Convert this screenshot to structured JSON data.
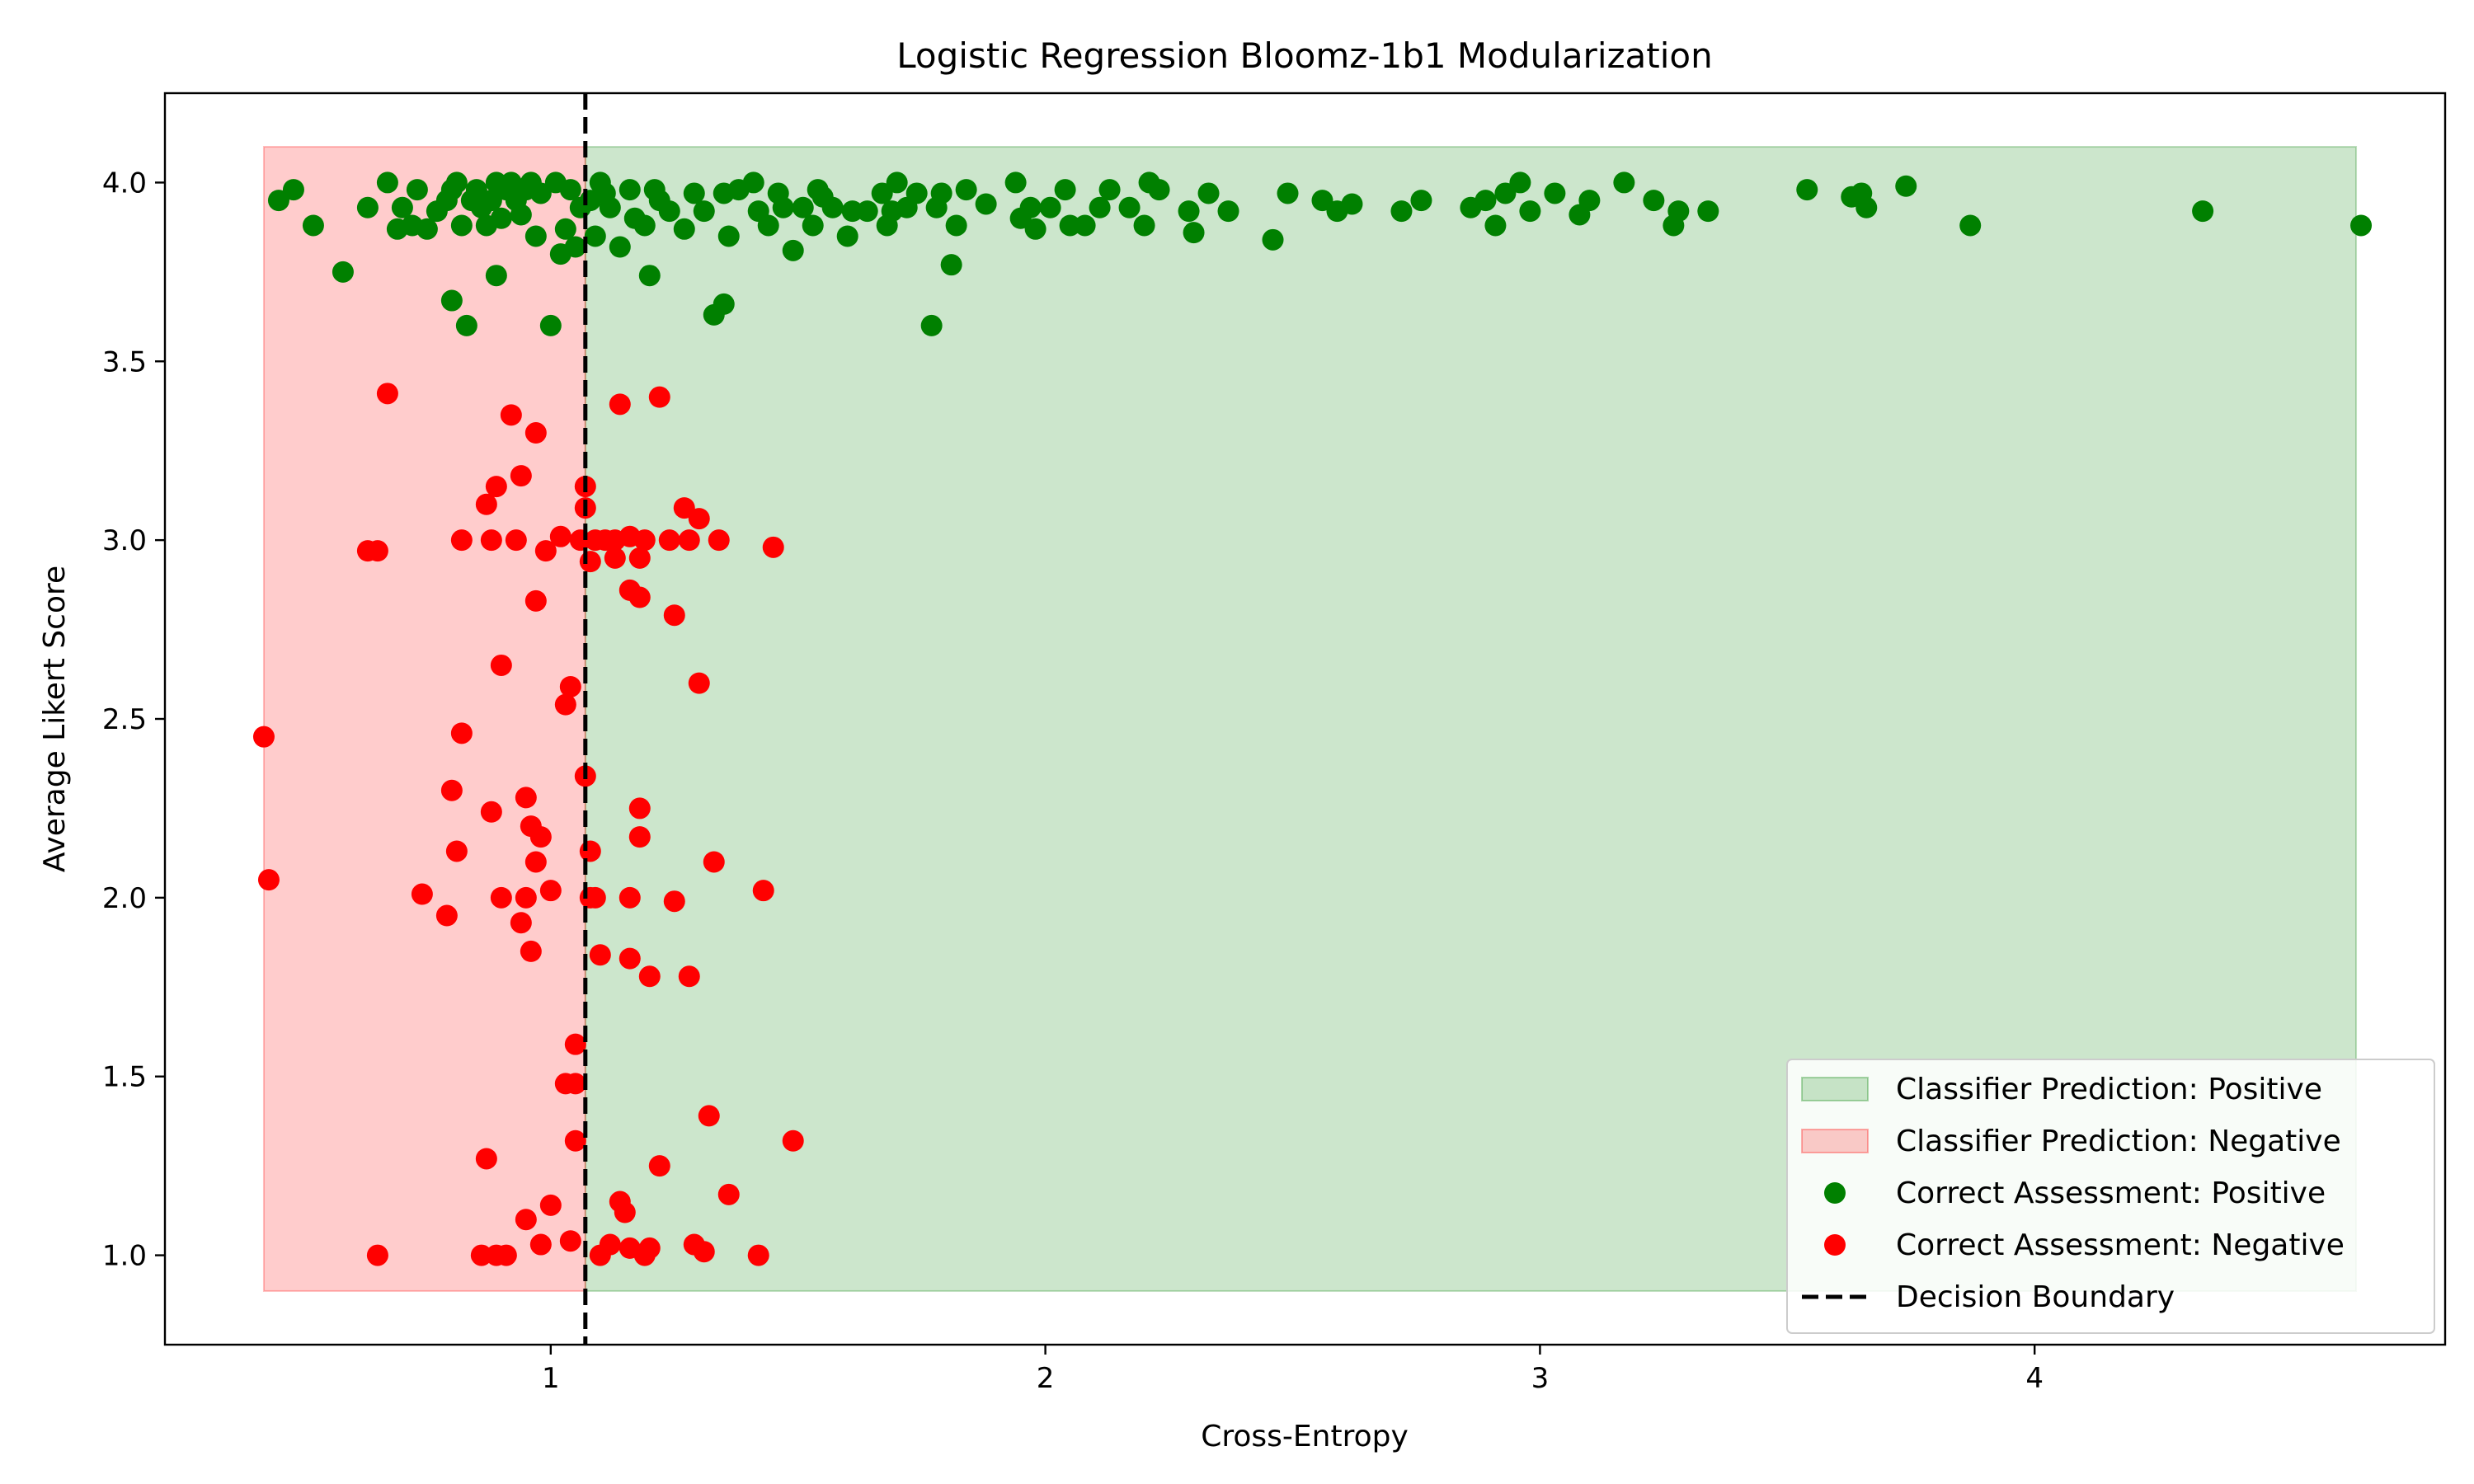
{
  "chart_data": {
    "type": "scatter",
    "title": "Logistic Regression Bloomz-1b1 Modularization",
    "xlabel": "Cross-Entropy",
    "ylabel": "Average Likert Score",
    "xlim": [
      0.22,
      4.83
    ],
    "ylim": [
      0.75,
      4.25
    ],
    "xticks": [
      1,
      2,
      3,
      4
    ],
    "yticks": [
      1.0,
      1.5,
      2.0,
      2.5,
      3.0,
      3.5,
      4.0
    ],
    "grid": false,
    "legend_position": "lower right",
    "decision_boundary": 1.07,
    "regions": [
      {
        "name": "Classifier Prediction: Positive",
        "color": "#008000",
        "x": [
          1.07,
          4.65
        ],
        "y": [
          0.9,
          4.1
        ]
      },
      {
        "name": "Classifier Prediction: Negative",
        "color": "#ff0000",
        "x": [
          0.42,
          1.07
        ],
        "y": [
          0.9,
          4.1
        ]
      }
    ],
    "series": [
      {
        "name": "Correct Assessment: Positive",
        "color": "#008000",
        "points": [
          [
            0.45,
            3.95
          ],
          [
            0.48,
            3.98
          ],
          [
            0.52,
            3.88
          ],
          [
            0.58,
            3.75
          ],
          [
            0.63,
            3.93
          ],
          [
            0.67,
            4.0
          ],
          [
            0.69,
            3.87
          ],
          [
            0.7,
            3.93
          ],
          [
            0.72,
            3.88
          ],
          [
            0.73,
            3.98
          ],
          [
            0.75,
            3.87
          ],
          [
            0.77,
            3.92
          ],
          [
            0.79,
            3.95
          ],
          [
            0.8,
            3.98
          ],
          [
            0.8,
            3.67
          ],
          [
            0.81,
            4.0
          ],
          [
            0.82,
            3.88
          ],
          [
            0.83,
            3.6
          ],
          [
            0.84,
            3.95
          ],
          [
            0.85,
            3.98
          ],
          [
            0.86,
            3.93
          ],
          [
            0.87,
            3.88
          ],
          [
            0.88,
            3.95
          ],
          [
            0.89,
            4.0
          ],
          [
            0.89,
            3.74
          ],
          [
            0.9,
            3.9
          ],
          [
            0.91,
            3.98
          ],
          [
            0.92,
            4.0
          ],
          [
            0.93,
            3.95
          ],
          [
            0.94,
            3.91
          ],
          [
            0.95,
            3.98
          ],
          [
            0.96,
            4.0
          ],
          [
            0.97,
            3.85
          ],
          [
            0.98,
            3.97
          ],
          [
            1.0,
            3.6
          ],
          [
            1.01,
            4.0
          ],
          [
            1.02,
            3.8
          ],
          [
            1.03,
            3.87
          ],
          [
            1.04,
            3.98
          ],
          [
            1.05,
            3.82
          ],
          [
            1.06,
            3.93
          ],
          [
            1.08,
            3.95
          ],
          [
            1.09,
            3.85
          ],
          [
            1.1,
            4.0
          ],
          [
            1.11,
            3.97
          ],
          [
            1.12,
            3.93
          ],
          [
            1.14,
            3.82
          ],
          [
            1.16,
            3.98
          ],
          [
            1.17,
            3.9
          ],
          [
            1.19,
            3.88
          ],
          [
            1.2,
            3.74
          ],
          [
            1.21,
            3.98
          ],
          [
            1.22,
            3.95
          ],
          [
            1.24,
            3.92
          ],
          [
            1.27,
            3.87
          ],
          [
            1.29,
            3.97
          ],
          [
            1.31,
            3.92
          ],
          [
            1.33,
            3.63
          ],
          [
            1.35,
            3.66
          ],
          [
            1.35,
            3.97
          ],
          [
            1.36,
            3.85
          ],
          [
            1.38,
            3.98
          ],
          [
            1.41,
            4.0
          ],
          [
            1.42,
            3.92
          ],
          [
            1.44,
            3.88
          ],
          [
            1.46,
            3.97
          ],
          [
            1.47,
            3.93
          ],
          [
            1.49,
            3.81
          ],
          [
            1.51,
            3.93
          ],
          [
            1.53,
            3.88
          ],
          [
            1.54,
            3.98
          ],
          [
            1.55,
            3.96
          ],
          [
            1.57,
            3.93
          ],
          [
            1.6,
            3.85
          ],
          [
            1.61,
            3.92
          ],
          [
            1.64,
            3.92
          ],
          [
            1.67,
            3.97
          ],
          [
            1.68,
            3.88
          ],
          [
            1.69,
            3.92
          ],
          [
            1.7,
            4.0
          ],
          [
            1.72,
            3.93
          ],
          [
            1.74,
            3.97
          ],
          [
            1.77,
            3.6
          ],
          [
            1.78,
            3.93
          ],
          [
            1.79,
            3.97
          ],
          [
            1.81,
            3.77
          ],
          [
            1.82,
            3.88
          ],
          [
            1.84,
            3.98
          ],
          [
            1.88,
            3.94
          ],
          [
            1.94,
            4.0
          ],
          [
            1.95,
            3.9
          ],
          [
            1.97,
            3.93
          ],
          [
            1.98,
            3.87
          ],
          [
            2.01,
            3.93
          ],
          [
            2.04,
            3.98
          ],
          [
            2.05,
            3.88
          ],
          [
            2.08,
            3.88
          ],
          [
            2.11,
            3.93
          ],
          [
            2.13,
            3.98
          ],
          [
            2.17,
            3.93
          ],
          [
            2.2,
            3.88
          ],
          [
            2.21,
            4.0
          ],
          [
            2.23,
            3.98
          ],
          [
            2.29,
            3.92
          ],
          [
            2.3,
            3.86
          ],
          [
            2.33,
            3.97
          ],
          [
            2.37,
            3.92
          ],
          [
            2.46,
            3.84
          ],
          [
            2.49,
            3.97
          ],
          [
            2.56,
            3.95
          ],
          [
            2.59,
            3.92
          ],
          [
            2.62,
            3.94
          ],
          [
            2.72,
            3.92
          ],
          [
            2.76,
            3.95
          ],
          [
            2.86,
            3.93
          ],
          [
            2.89,
            3.95
          ],
          [
            2.91,
            3.88
          ],
          [
            2.93,
            3.97
          ],
          [
            2.96,
            4.0
          ],
          [
            2.98,
            3.92
          ],
          [
            3.03,
            3.97
          ],
          [
            3.08,
            3.91
          ],
          [
            3.1,
            3.95
          ],
          [
            3.17,
            4.0
          ],
          [
            3.23,
            3.95
          ],
          [
            3.27,
            3.88
          ],
          [
            3.28,
            3.92
          ],
          [
            3.34,
            3.92
          ],
          [
            3.54,
            3.98
          ],
          [
            3.63,
            3.96
          ],
          [
            3.65,
            3.97
          ],
          [
            3.66,
            3.93
          ],
          [
            3.74,
            3.99
          ],
          [
            3.87,
            3.88
          ],
          [
            4.34,
            3.92
          ],
          [
            4.66,
            3.88
          ]
        ]
      },
      {
        "name": "Correct Assessment: Negative",
        "color": "#ff0000",
        "points": [
          [
            0.42,
            2.45
          ],
          [
            0.43,
            2.05
          ],
          [
            0.63,
            2.97
          ],
          [
            0.65,
            2.97
          ],
          [
            0.65,
            1.0
          ],
          [
            0.67,
            3.41
          ],
          [
            0.74,
            2.01
          ],
          [
            0.79,
            1.95
          ],
          [
            0.8,
            2.3
          ],
          [
            0.81,
            2.13
          ],
          [
            0.82,
            2.46
          ],
          [
            0.82,
            3.0
          ],
          [
            0.86,
            1.0
          ],
          [
            0.87,
            3.1
          ],
          [
            0.87,
            1.27
          ],
          [
            0.88,
            3.0
          ],
          [
            0.88,
            2.24
          ],
          [
            0.89,
            3.15
          ],
          [
            0.89,
            1.0
          ],
          [
            0.9,
            2.65
          ],
          [
            0.9,
            2.0
          ],
          [
            0.91,
            1.0
          ],
          [
            0.92,
            3.35
          ],
          [
            0.93,
            3.0
          ],
          [
            0.94,
            1.93
          ],
          [
            0.94,
            3.18
          ],
          [
            0.95,
            2.28
          ],
          [
            0.95,
            2.0
          ],
          [
            0.95,
            1.1
          ],
          [
            0.96,
            2.2
          ],
          [
            0.96,
            1.85
          ],
          [
            0.97,
            3.3
          ],
          [
            0.97,
            2.83
          ],
          [
            0.97,
            2.1
          ],
          [
            0.98,
            2.17
          ],
          [
            0.98,
            1.03
          ],
          [
            0.99,
            2.97
          ],
          [
            1.0,
            2.02
          ],
          [
            1.0,
            1.14
          ],
          [
            1.02,
            3.01
          ],
          [
            1.03,
            2.54
          ],
          [
            1.03,
            1.48
          ],
          [
            1.04,
            2.59
          ],
          [
            1.04,
            1.04
          ],
          [
            1.05,
            1.48
          ],
          [
            1.05,
            1.59
          ],
          [
            1.05,
            1.32
          ],
          [
            1.06,
            3.0
          ],
          [
            1.07,
            3.15
          ],
          [
            1.07,
            3.09
          ],
          [
            1.07,
            2.34
          ],
          [
            1.08,
            2.13
          ],
          [
            1.08,
            2.0
          ],
          [
            1.08,
            2.94
          ],
          [
            1.09,
            3.0
          ],
          [
            1.09,
            2.0
          ],
          [
            1.1,
            1.84
          ],
          [
            1.1,
            1.0
          ],
          [
            1.11,
            3.0
          ],
          [
            1.12,
            1.03
          ],
          [
            1.13,
            3.0
          ],
          [
            1.13,
            2.95
          ],
          [
            1.14,
            3.38
          ],
          [
            1.14,
            1.15
          ],
          [
            1.15,
            1.12
          ],
          [
            1.16,
            3.01
          ],
          [
            1.16,
            2.86
          ],
          [
            1.16,
            2.0
          ],
          [
            1.16,
            1.83
          ],
          [
            1.16,
            1.02
          ],
          [
            1.18,
            2.25
          ],
          [
            1.18,
            2.17
          ],
          [
            1.18,
            2.95
          ],
          [
            1.18,
            2.84
          ],
          [
            1.19,
            1.0
          ],
          [
            1.19,
            3.0
          ],
          [
            1.2,
            1.78
          ],
          [
            1.2,
            1.02
          ],
          [
            1.22,
            3.4
          ],
          [
            1.22,
            1.25
          ],
          [
            1.24,
            3.0
          ],
          [
            1.25,
            1.99
          ],
          [
            1.25,
            2.79
          ],
          [
            1.27,
            3.09
          ],
          [
            1.28,
            3.0
          ],
          [
            1.28,
            1.78
          ],
          [
            1.29,
            1.03
          ],
          [
            1.3,
            3.06
          ],
          [
            1.3,
            2.6
          ],
          [
            1.31,
            1.01
          ],
          [
            1.32,
            1.39
          ],
          [
            1.33,
            2.1
          ],
          [
            1.34,
            3.0
          ],
          [
            1.36,
            1.17
          ],
          [
            1.42,
            1.0
          ],
          [
            1.43,
            2.02
          ],
          [
            1.45,
            2.98
          ],
          [
            1.49,
            1.32
          ]
        ]
      }
    ],
    "legend": [
      {
        "label": "Classifier Prediction: Positive",
        "kind": "patch",
        "color": "#008000"
      },
      {
        "label": "Classifier Prediction: Negative",
        "kind": "patch",
        "color": "#ff0000"
      },
      {
        "label": "Correct Assessment: Positive",
        "kind": "marker",
        "color": "#008000"
      },
      {
        "label": "Correct Assessment: Negative",
        "kind": "marker",
        "color": "#ff0000"
      },
      {
        "label": "Decision Boundary",
        "kind": "dashed-line",
        "color": "#000000"
      }
    ]
  }
}
